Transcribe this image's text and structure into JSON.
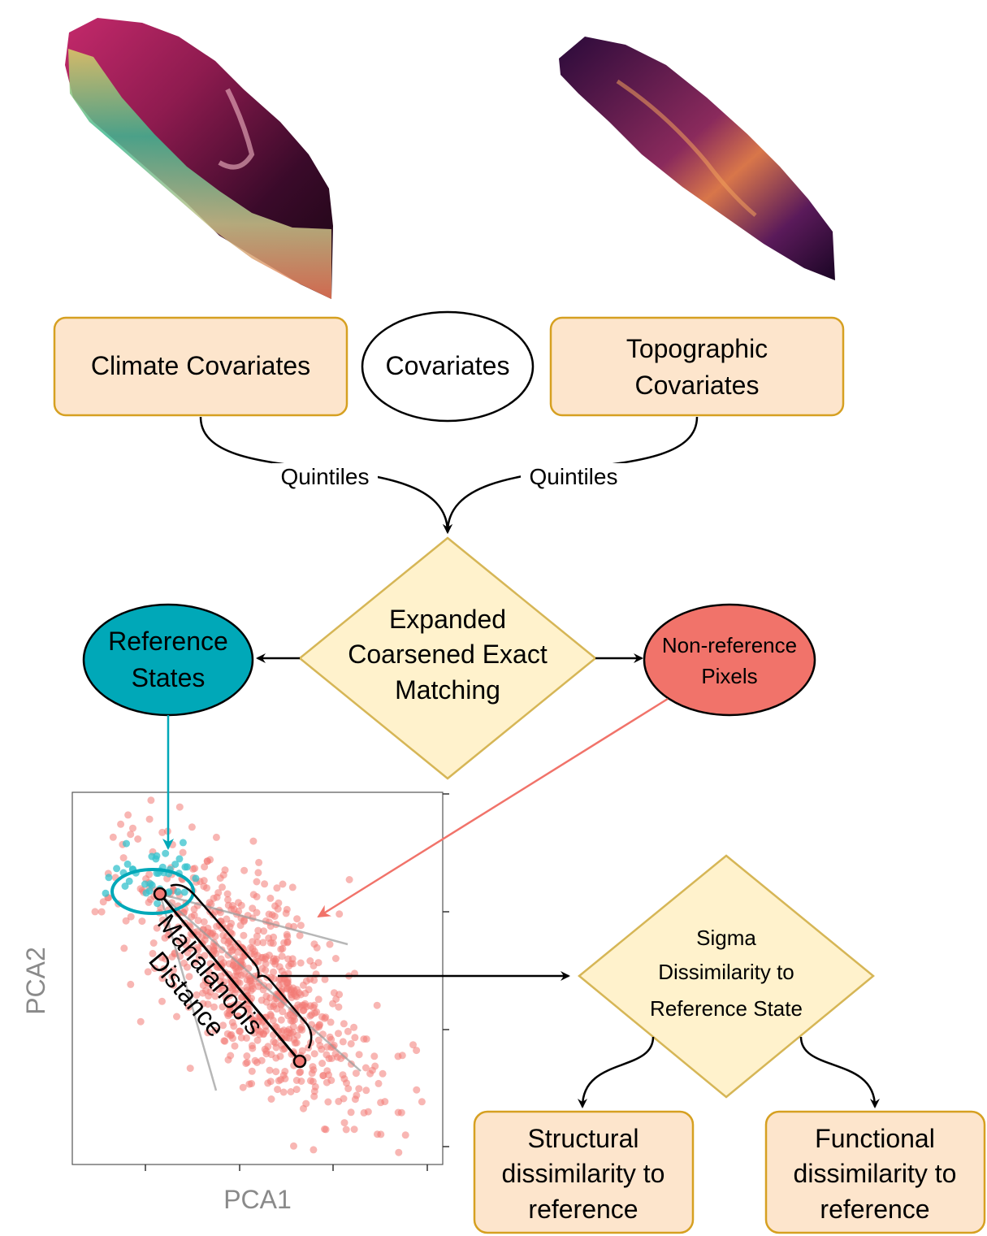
{
  "nodes": {
    "climate": {
      "label": "Climate Covariates"
    },
    "covariates": {
      "label": "Covariates"
    },
    "topographic": {
      "line1": "Topographic",
      "line2": "Covariates"
    },
    "cem": {
      "line1": "Expanded",
      "line2": "Coarsened Exact",
      "line3": "Matching"
    },
    "reference": {
      "line1": "Reference",
      "line2": "States"
    },
    "nonreference": {
      "line1": "Non-reference",
      "line2": "Pixels"
    },
    "sigma": {
      "line1": "Sigma",
      "line2": "Dissimilarity to",
      "line3": "Reference State"
    },
    "structural": {
      "line1": "Structural",
      "line2": "dissimilarity to",
      "line3": "reference"
    },
    "functional": {
      "line1": "Functional",
      "line2": "dissimilarity to",
      "line3": "reference"
    }
  },
  "edges": {
    "climate_to_cem": {
      "label": "Quintiles"
    },
    "topo_to_cem": {
      "label": "Quintiles"
    }
  },
  "scatter": {
    "xlabel": "PCA1",
    "ylabel": "PCA2",
    "annotation_line1": "Mahalanobis",
    "annotation_line2": "Distance"
  },
  "colors": {
    "box_fill": "#fde5cc",
    "box_stroke": "#d6a021",
    "diamond_fill": "#fff2cc",
    "diamond_stroke": "#d6b656",
    "reference_fill": "#00a8b8",
    "nonreference_fill": "#f1736a",
    "reference_point": "#35c2cc",
    "nonreference_point": "#f27a75",
    "axis_label": "#8a8a8a"
  }
}
